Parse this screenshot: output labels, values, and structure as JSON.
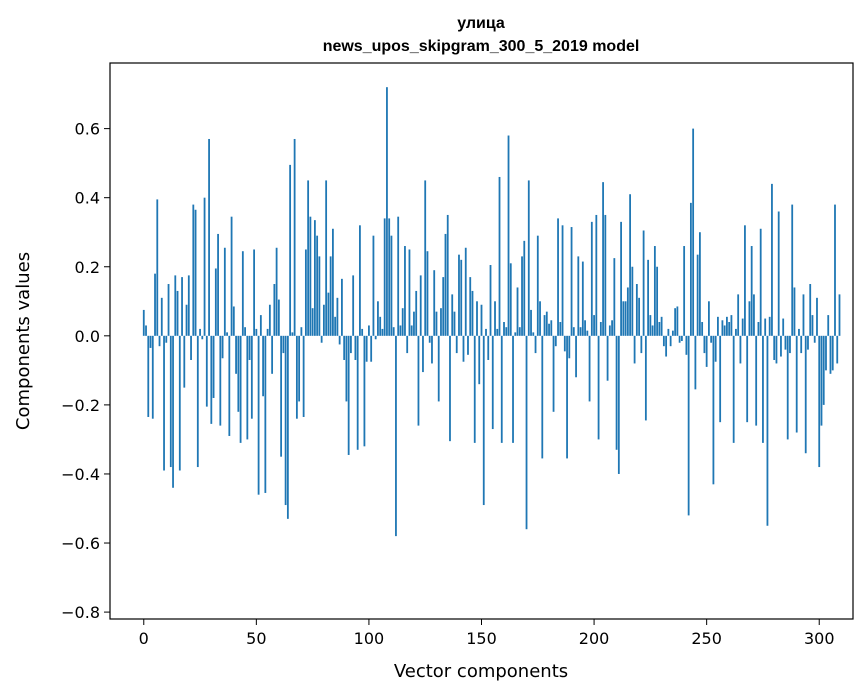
{
  "chart_data": {
    "type": "bar",
    "title": "улица",
    "subtitle": "news_upos_skipgram_300_5_2019 model",
    "xlabel": "Vector components",
    "ylabel": "Components values",
    "xlim": [
      -15,
      315
    ],
    "ylim": [
      -0.82,
      0.79
    ],
    "x_ticks": [
      0,
      50,
      100,
      150,
      200,
      250,
      300
    ],
    "x_tick_labels": [
      "0",
      "50",
      "100",
      "150",
      "200",
      "250",
      "300"
    ],
    "y_ticks": [
      -0.8,
      -0.6,
      -0.4,
      -0.2,
      0.0,
      0.2,
      0.4,
      0.6
    ],
    "y_tick_labels": [
      "−0.8",
      "−0.6",
      "−0.4",
      "−0.2",
      "0.0",
      "0.2",
      "0.4",
      "0.6"
    ],
    "bar_color": "#1f77b4",
    "series": [
      {
        "name": "улица",
        "values": [
          0.075,
          0.03,
          -0.235,
          -0.035,
          -0.24,
          0.18,
          0.395,
          -0.03,
          0.11,
          -0.39,
          -0.02,
          0.15,
          -0.38,
          -0.44,
          0.175,
          0.13,
          -0.39,
          0.17,
          -0.15,
          0.09,
          0.175,
          -0.07,
          0.38,
          0.365,
          -0.38,
          0.02,
          -0.01,
          0.4,
          -0.205,
          0.57,
          -0.255,
          -0.18,
          0.195,
          0.295,
          -0.26,
          -0.065,
          0.255,
          0.01,
          -0.29,
          0.345,
          0.085,
          -0.11,
          -0.22,
          -0.31,
          0.245,
          0.025,
          -0.3,
          -0.07,
          -0.24,
          0.25,
          0.02,
          -0.46,
          0.06,
          -0.175,
          -0.455,
          0.02,
          0.09,
          -0.11,
          0.15,
          0.255,
          0.105,
          -0.35,
          -0.05,
          -0.49,
          -0.53,
          0.495,
          0.01,
          0.57,
          -0.24,
          -0.19,
          0.025,
          -0.235,
          0.25,
          0.45,
          0.345,
          0.08,
          0.335,
          0.29,
          0.23,
          -0.02,
          0.09,
          0.45,
          0.125,
          0.23,
          0.31,
          0.055,
          0.11,
          -0.025,
          0.165,
          -0.07,
          -0.19,
          -0.345,
          -0.05,
          0.175,
          -0.07,
          -0.33,
          0.32,
          0.02,
          -0.32,
          -0.075,
          0.03,
          -0.075,
          0.29,
          -0.01,
          0.1,
          0.055,
          0.02,
          0.34,
          0.72,
          0.34,
          0.29,
          0.025,
          -0.58,
          0.345,
          0.03,
          0.08,
          0.26,
          -0.05,
          0.25,
          0.03,
          0.07,
          0.13,
          -0.26,
          0.175,
          -0.105,
          0.45,
          0.245,
          -0.02,
          -0.08,
          0.19,
          0.07,
          -0.19,
          0.08,
          0.17,
          0.295,
          0.35,
          -0.305,
          0.12,
          0.07,
          -0.05,
          0.235,
          0.22,
          -0.075,
          0.255,
          -0.055,
          0.17,
          0.13,
          -0.31,
          0.1,
          -0.14,
          0.09,
          -0.49,
          0.02,
          -0.07,
          0.205,
          -0.27,
          0.1,
          0.02,
          0.46,
          -0.31,
          0.04,
          0.025,
          0.58,
          0.21,
          -0.31,
          0.01,
          0.14,
          0.025,
          0.23,
          0.275,
          -0.56,
          0.45,
          0.075,
          0.01,
          -0.05,
          0.29,
          0.1,
          -0.355,
          0.06,
          0.07,
          0.035,
          0.045,
          -0.22,
          -0.03,
          0.34,
          0.04,
          0.32,
          -0.045,
          -0.355,
          -0.065,
          0.315,
          0.025,
          -0.12,
          0.23,
          0.025,
          0.215,
          0.045,
          0.015,
          -0.19,
          0.33,
          0.06,
          0.35,
          -0.3,
          0.04,
          0.445,
          0.35,
          -0.13,
          0.03,
          0.045,
          0.225,
          -0.33,
          -0.4,
          0.33,
          0.1,
          0.1,
          0.14,
          0.41,
          0.2,
          -0.08,
          0.15,
          0.11,
          -0.05,
          0.305,
          -0.245,
          0.22,
          0.06,
          0.03,
          0.26,
          0.2,
          0.04,
          0.055,
          -0.03,
          -0.06,
          0.02,
          -0.03,
          0.015,
          0.08,
          0.085,
          -0.02,
          -0.015,
          0.26,
          -0.055,
          -0.52,
          0.385,
          0.6,
          -0.155,
          0.235,
          0.3,
          0.04,
          -0.05,
          -0.09,
          0.1,
          -0.02,
          -0.43,
          -0.075,
          0.055,
          -0.25,
          0.045,
          0.03,
          0.055,
          0.04,
          0.06,
          -0.31,
          0.02,
          0.12,
          -0.08,
          0.05,
          0.32,
          -0.25,
          0.1,
          0.26,
          0.12,
          -0.26,
          0.04,
          0.31,
          -0.31,
          0.05,
          -0.55,
          0.055,
          0.44,
          -0.07,
          -0.08,
          0.36,
          -0.06,
          0.05,
          -0.04,
          -0.3,
          -0.05,
          0.38,
          0.14,
          -0.28,
          0.02,
          -0.05,
          0.12,
          -0.34,
          -0.04,
          0.15,
          0.06,
          -0.02,
          0.11,
          -0.38,
          -0.26,
          -0.2,
          -0.1,
          0.06,
          -0.11,
          -0.1,
          0.38,
          -0.08,
          0.12
        ]
      }
    ]
  }
}
